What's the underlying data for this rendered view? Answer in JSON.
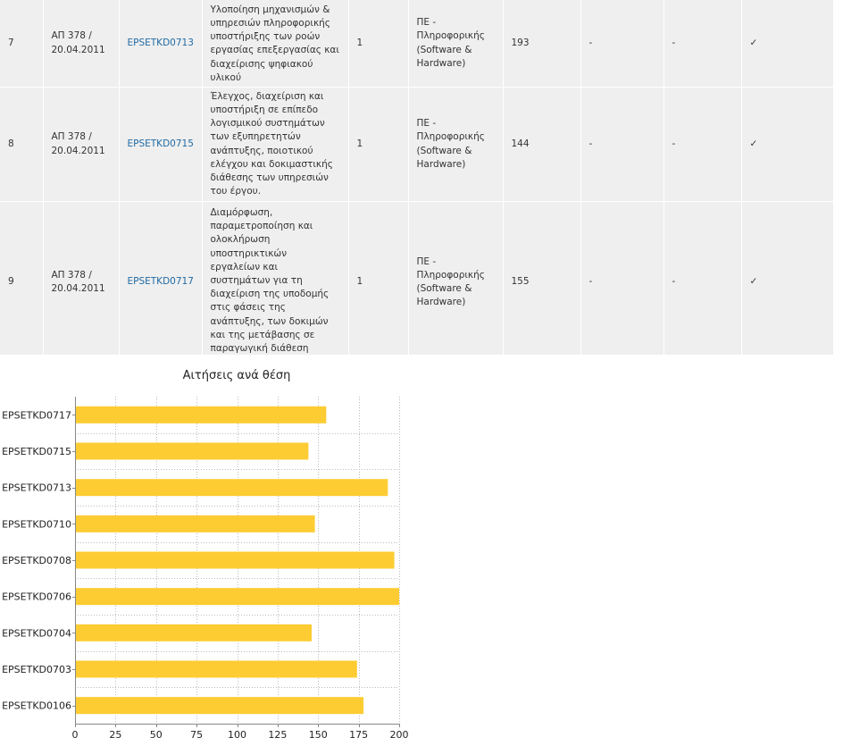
{
  "table": {
    "rows": [
      {
        "num": "7",
        "decision": [
          "ΑΠ 378 /",
          "20.04.2011"
        ],
        "code": "EPSETKD0713",
        "description": [
          "Υλοποίηση μηχανισμών &",
          "υπηρεσιών πληροφορικής",
          "υποστήριξης των ροών",
          "εργασίας επεξεργασίας και",
          "διαχείρισης ψηφιακού",
          "υλικού"
        ],
        "positions": "1",
        "specialty": [
          "ΠΕ -",
          "Πληροφορικής",
          "(Software &",
          "Hardware)"
        ],
        "applications": "193",
        "col8": "-",
        "col9": "-",
        "col10": "✓"
      },
      {
        "num": "8",
        "decision": [
          "ΑΠ 378 /",
          "20.04.2011"
        ],
        "code": "EPSETKD0715",
        "description": [
          "Έλεγχος, διαχείριση και",
          "υποστήριξη σε επίπεδο",
          "λογισμικού συστημάτων",
          "των εξυπηρετητών",
          "ανάπτυξης, ποιοτικού",
          "ελέγχου και δοκιμαστικής",
          "διάθεσης των υπηρεσιών",
          "του έργου."
        ],
        "positions": "1",
        "specialty": [
          "ΠΕ -",
          "Πληροφορικής",
          "(Software &",
          "Hardware)"
        ],
        "applications": "144",
        "col8": "-",
        "col9": "-",
        "col10": "✓"
      },
      {
        "num": "9",
        "decision": [
          "ΑΠ 378 /",
          "20.04.2011"
        ],
        "code": "EPSETKD0717",
        "description": [
          "Διαμόρφωση,",
          "παραμετροποίηση και",
          "ολοκλήρωση",
          "υποστηρικτικών",
          "εργαλείων και",
          "συστημάτων για τη",
          "διαχείριση της υποδομής",
          "στις φάσεις της",
          "ανάπτυξης, των δοκιμών",
          "και της μετάβασης σε",
          "παραγωγική διάθεση"
        ],
        "positions": "1",
        "specialty": [
          "ΠΕ -",
          "Πληροφορικής",
          "(Software &",
          "Hardware)"
        ],
        "applications": "155",
        "col8": "-",
        "col9": "-",
        "col10": "✓"
      }
    ]
  },
  "colors": {
    "table_bg": "#efefef",
    "link": "#1f6aa5",
    "bar": "#fdcc33",
    "axis": "#888888",
    "grid": "#bbbbbb"
  },
  "chart_data": {
    "type": "bar",
    "orientation": "horizontal",
    "title": "Αιτήσεις ανά θέση",
    "xlabel": "",
    "ylabel": "",
    "categories": [
      "EPSETKD0717",
      "EPSETKD0715",
      "EPSETKD0713",
      "EPSETKD0710",
      "EPSETKD0708",
      "EPSETKD0706",
      "EPSETKD0704",
      "EPSETKD0703",
      "EPSETKD0106"
    ],
    "values": [
      155,
      144,
      193,
      148,
      197,
      203,
      146,
      174,
      178
    ],
    "xlim": [
      0,
      200
    ],
    "xticks": [
      0,
      25,
      50,
      75,
      100,
      125,
      150,
      175,
      200
    ],
    "grid": true,
    "legend": "none"
  }
}
